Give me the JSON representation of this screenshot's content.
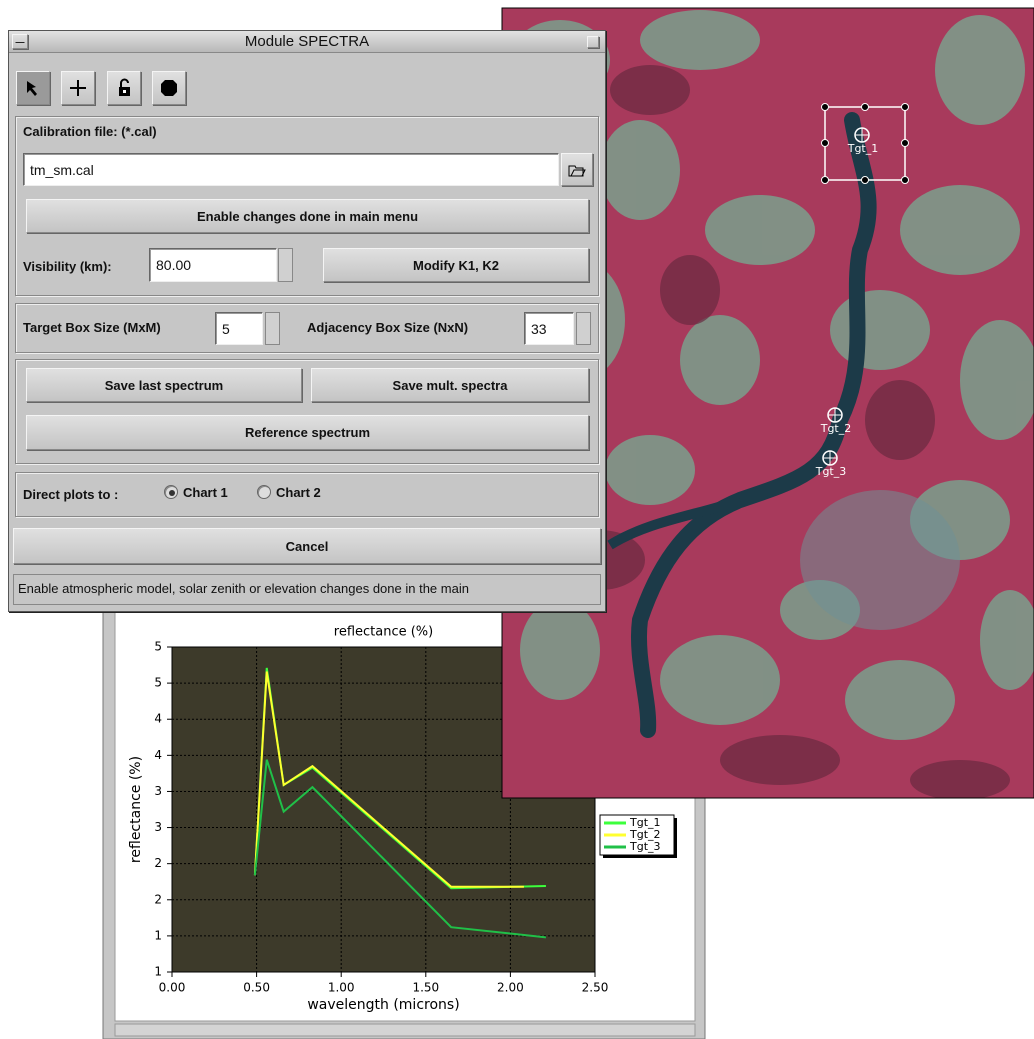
{
  "dialog": {
    "title": "Module SPECTRA",
    "calibration_label": "Calibration file: (*.cal)",
    "calibration_file": "tm_sm.cal",
    "enable_button": "Enable changes done in main menu",
    "visibility_label": "Visibility (km):",
    "visibility_value": "80.00",
    "modify_button": "Modify K1, K2",
    "target_box_label": "Target Box Size (MxM)",
    "target_box_value": 5,
    "adjacency_label": "Adjacency Box Size (NxN)",
    "adjacency_value": 33,
    "save_last": "Save last spectrum",
    "save_mult": "Save mult. spectra",
    "reference": "Reference spectrum",
    "direct_label": "Direct plots to :",
    "radio": [
      "Chart 1",
      "Chart 2"
    ],
    "cancel": "Cancel",
    "status": "Enable atmospheric model, solar zenith or elevation changes done in the main"
  },
  "image": {
    "targets": [
      "Tgt_1",
      "Tgt_2",
      "Tgt_3"
    ]
  },
  "chart_data": {
    "type": "line",
    "title": "reflectance (%)",
    "xlabel": "wavelength (microns)",
    "ylabel": "reflectance (%)",
    "xlim": [
      0,
      2.5
    ],
    "ylim": [
      1,
      5.5
    ],
    "xticks": [
      {
        "value": 0,
        "label": "0.00"
      },
      {
        "value": 0.5,
        "label": "0.50"
      },
      {
        "value": 1,
        "label": "1.00"
      },
      {
        "value": 1.5,
        "label": "1.50"
      },
      {
        "value": 2,
        "label": "2.00"
      },
      {
        "value": 2.5,
        "label": "2.50"
      }
    ],
    "yticks": [
      {
        "value": 1,
        "label": "1"
      },
      {
        "value": 1.5,
        "label": "1"
      },
      {
        "value": 2,
        "label": "2"
      },
      {
        "value": 2.5,
        "label": "2"
      },
      {
        "value": 3,
        "label": "3"
      },
      {
        "value": 3.5,
        "label": "3"
      },
      {
        "value": 4,
        "label": "4"
      },
      {
        "value": 4.5,
        "label": "4"
      },
      {
        "value": 5,
        "label": "5"
      },
      {
        "value": 5.5,
        "label": "5"
      }
    ],
    "grid": true,
    "legend": "right",
    "series": [
      {
        "name": "Tgt_1",
        "color": "#3cff3c",
        "x": [
          0.49,
          0.56,
          0.66,
          0.83,
          1.65,
          2.21
        ],
        "values": [
          2.34,
          5.21,
          3.59,
          3.83,
          2.16,
          2.19
        ]
      },
      {
        "name": "Tgt_2",
        "color": "#ffff30",
        "x": [
          0.49,
          0.56,
          0.66,
          0.83,
          1.65,
          2.08
        ],
        "values": [
          2.34,
          5.16,
          3.59,
          3.85,
          2.18,
          2.18
        ]
      },
      {
        "name": "Tgt_3",
        "color": "#20c048",
        "x": [
          0.49,
          0.56,
          0.66,
          0.83,
          1.65,
          2.21
        ],
        "values": [
          2.34,
          3.94,
          3.22,
          3.56,
          1.62,
          1.48
        ]
      }
    ]
  }
}
